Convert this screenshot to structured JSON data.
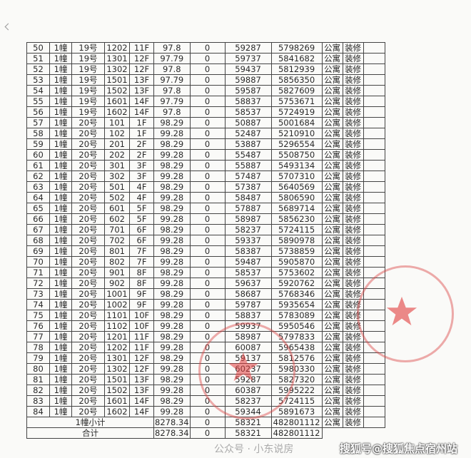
{
  "table": {
    "rows": [
      [
        "50",
        "1幢",
        "19号",
        "1202",
        "11F",
        "97.8",
        "0",
        "59287",
        "5798269",
        "公寓",
        "装修"
      ],
      [
        "51",
        "1幢",
        "19号",
        "1301",
        "12F",
        "97.79",
        "0",
        "59737",
        "5841682",
        "公寓",
        "装修"
      ],
      [
        "52",
        "1幢",
        "19号",
        "1302",
        "12F",
        "97.8",
        "0",
        "59437",
        "5812939",
        "公寓",
        "装修"
      ],
      [
        "53",
        "1幢",
        "19号",
        "1501",
        "13F",
        "97.79",
        "0",
        "59887",
        "5856350",
        "公寓",
        "装修"
      ],
      [
        "54",
        "1幢",
        "19号",
        "1502",
        "13F",
        "97.8",
        "0",
        "59587",
        "5827609",
        "公寓",
        "装修"
      ],
      [
        "55",
        "1幢",
        "19号",
        "1601",
        "14F",
        "97.79",
        "0",
        "58837",
        "5753671",
        "公寓",
        "装修"
      ],
      [
        "56",
        "1幢",
        "19号",
        "1602",
        "14F",
        "97.8",
        "0",
        "58537",
        "5724919",
        "公寓",
        "装修"
      ],
      [
        "57",
        "1幢",
        "20号",
        "101",
        "1F",
        "98.29",
        "0",
        "50887",
        "5001684",
        "公寓",
        "装修"
      ],
      [
        "58",
        "1幢",
        "20号",
        "102",
        "1F",
        "99.28",
        "0",
        "52487",
        "5210910",
        "公寓",
        "装修"
      ],
      [
        "59",
        "1幢",
        "20号",
        "201",
        "2F",
        "98.29",
        "0",
        "53887",
        "5296554",
        "公寓",
        "装修"
      ],
      [
        "60",
        "1幢",
        "20号",
        "202",
        "2F",
        "99.28",
        "0",
        "55487",
        "5508750",
        "公寓",
        "装修"
      ],
      [
        "61",
        "1幢",
        "20号",
        "301",
        "3F",
        "98.29",
        "0",
        "55887",
        "5493134",
        "公寓",
        "装修"
      ],
      [
        "62",
        "1幢",
        "20号",
        "302",
        "3F",
        "99.28",
        "0",
        "57487",
        "5707310",
        "公寓",
        "装修"
      ],
      [
        "63",
        "1幢",
        "20号",
        "501",
        "4F",
        "98.29",
        "0",
        "57387",
        "5640569",
        "公寓",
        "装修"
      ],
      [
        "64",
        "1幢",
        "20号",
        "502",
        "4F",
        "99.28",
        "0",
        "58487",
        "5806590",
        "公寓",
        "装修"
      ],
      [
        "65",
        "1幢",
        "20号",
        "601",
        "5F",
        "98.29",
        "0",
        "57887",
        "5689714",
        "公寓",
        "装修"
      ],
      [
        "66",
        "1幢",
        "20号",
        "602",
        "5F",
        "99.28",
        "0",
        "58987",
        "5856230",
        "公寓",
        "装修"
      ],
      [
        "67",
        "1幢",
        "20号",
        "701",
        "6F",
        "98.29",
        "0",
        "58237",
        "5724115",
        "公寓",
        "装修"
      ],
      [
        "68",
        "1幢",
        "20号",
        "702",
        "6F",
        "99.28",
        "0",
        "59337",
        "5890978",
        "公寓",
        "装修"
      ],
      [
        "69",
        "1幢",
        "20号",
        "801",
        "7F",
        "98.29",
        "0",
        "58387",
        "5738859",
        "公寓",
        "装修"
      ],
      [
        "70",
        "1幢",
        "20号",
        "802",
        "7F",
        "99.28",
        "0",
        "59487",
        "5905870",
        "公寓",
        "装修"
      ],
      [
        "71",
        "1幢",
        "20号",
        "901",
        "8F",
        "98.29",
        "0",
        "58537",
        "5753602",
        "公寓",
        "装修"
      ],
      [
        "72",
        "1幢",
        "20号",
        "902",
        "8F",
        "99.28",
        "0",
        "59637",
        "5920762",
        "公寓",
        "装修"
      ],
      [
        "73",
        "1幢",
        "20号",
        "1001",
        "9F",
        "98.29",
        "0",
        "58687",
        "5768346",
        "公寓",
        "装修"
      ],
      [
        "74",
        "1幢",
        "20号",
        "1002",
        "9F",
        "99.28",
        "0",
        "59787",
        "5935654",
        "公寓",
        "装修"
      ],
      [
        "75",
        "1幢",
        "20号",
        "1101",
        "10F",
        "98.29",
        "0",
        "58837",
        "5783089",
        "公寓",
        "装修"
      ],
      [
        "76",
        "1幢",
        "20号",
        "1102",
        "10F",
        "99.28",
        "0",
        "59937",
        "5950546",
        "公寓",
        "装修"
      ],
      [
        "77",
        "1幢",
        "20号",
        "1201",
        "11F",
        "98.29",
        "0",
        "58987",
        "5797833",
        "公寓",
        "装修"
      ],
      [
        "78",
        "1幢",
        "20号",
        "1202",
        "11F",
        "99.28",
        "0",
        "60087",
        "5965438",
        "公寓",
        "装修"
      ],
      [
        "79",
        "1幢",
        "20号",
        "1301",
        "12F",
        "98.29",
        "0",
        "59137",
        "5812576",
        "公寓",
        "装修"
      ],
      [
        "80",
        "1幢",
        "20号",
        "1302",
        "12F",
        "99.28",
        "0",
        "60237",
        "5980330",
        "公寓",
        "装修"
      ],
      [
        "81",
        "1幢",
        "20号",
        "1501",
        "13F",
        "98.29",
        "0",
        "59287",
        "5827320",
        "公寓",
        "装修"
      ],
      [
        "82",
        "1幢",
        "20号",
        "1502",
        "13F",
        "99.28",
        "0",
        "60387",
        "5995222",
        "公寓",
        "装修"
      ],
      [
        "83",
        "1幢",
        "20号",
        "1601",
        "14F",
        "98.29",
        "0",
        "58237",
        "5724115",
        "公寓",
        "装修"
      ],
      [
        "84",
        "1幢",
        "20号",
        "1602",
        "14F",
        "99.28",
        "0",
        "59344",
        "5891673",
        "公寓",
        "装修"
      ]
    ],
    "subtotal": {
      "label": "1幢小计",
      "area": "8278.34",
      "zero": "0",
      "price": "58321",
      "total": "482801112",
      "type": "公寓",
      "deco": "装修"
    },
    "grand_total": {
      "label": "合计",
      "area": "8278.34",
      "zero": "0",
      "price": "58321",
      "total": "482801112"
    }
  },
  "watermarks": {
    "wechat": "公众号 · 小东说房",
    "sohu": "搜狐号@搜狐焦点宿州站"
  },
  "stamp_color": "#e04646"
}
